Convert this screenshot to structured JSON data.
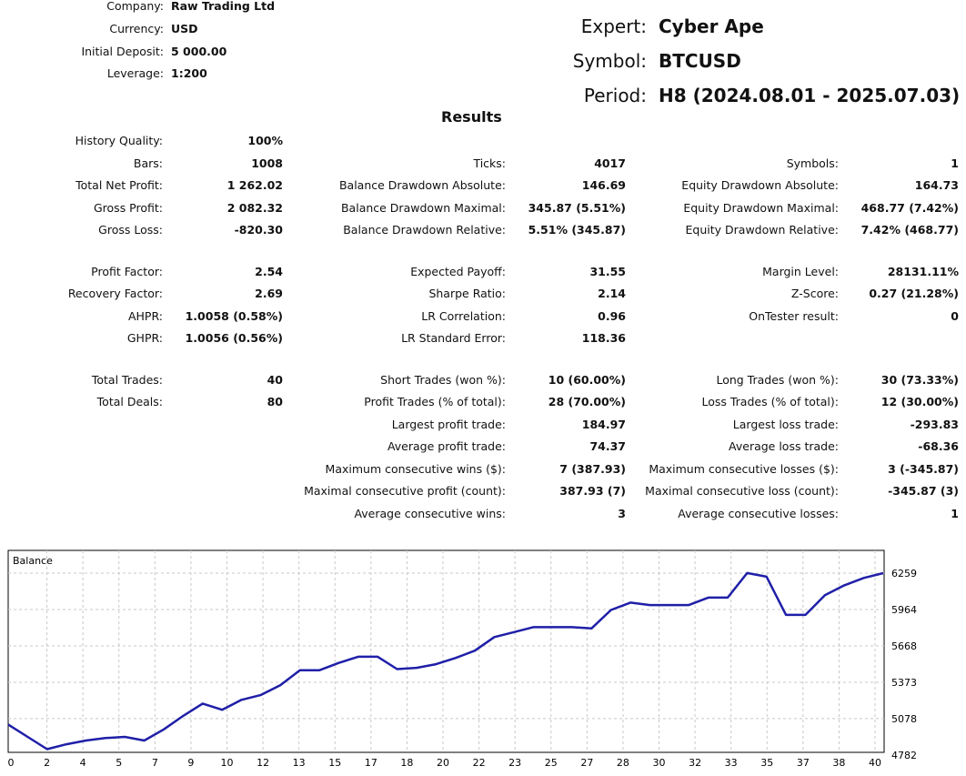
{
  "header": {
    "company_label": "Company:",
    "company": "Raw Trading Ltd",
    "currency_label": "Currency:",
    "currency": "USD",
    "deposit_label": "Initial Deposit:",
    "deposit": "5 000.00",
    "leverage_label": "Leverage:",
    "leverage": "1:200",
    "expert_label": "Expert:",
    "expert": "Cyber Ape",
    "symbol_label": "Symbol:",
    "symbol": "BTCUSD",
    "period_label": "Period:",
    "period": "H8 (2024.08.01 - 2025.07.03)"
  },
  "results_title": "Results",
  "col1": [
    {
      "label": "History Quality:",
      "value": "100%"
    },
    {
      "label": "Bars:",
      "value": "1008"
    },
    {
      "label": "Total Net Profit:",
      "value": "1 262.02"
    },
    {
      "label": "Gross Profit:",
      "value": "2 082.32"
    },
    {
      "label": "Gross Loss:",
      "value": "-820.30"
    },
    {
      "label": "Profit Factor:",
      "value": "2.54"
    },
    {
      "label": "Recovery Factor:",
      "value": "2.69"
    },
    {
      "label": "AHPR:",
      "value": "1.0058 (0.58%)"
    },
    {
      "label": "GHPR:",
      "value": "1.0056 (0.56%)"
    },
    {
      "label": "Total Trades:",
      "value": "40"
    },
    {
      "label": "Total Deals:",
      "value": "80"
    }
  ],
  "col2": [
    {
      "label": "Ticks:",
      "value": "4017"
    },
    {
      "label": "Balance Drawdown Absolute:",
      "value": "146.69"
    },
    {
      "label": "Balance Drawdown Maximal:",
      "value": "345.87 (5.51%)"
    },
    {
      "label": "Balance Drawdown Relative:",
      "value": "5.51% (345.87)"
    },
    {
      "label": "Expected Payoff:",
      "value": "31.55"
    },
    {
      "label": "Sharpe Ratio:",
      "value": "2.14"
    },
    {
      "label": "LR Correlation:",
      "value": "0.96"
    },
    {
      "label": "LR Standard Error:",
      "value": "118.36"
    },
    {
      "label": "Short Trades (won %):",
      "value": "10 (60.00%)"
    },
    {
      "label": "Profit Trades (% of total):",
      "value": "28 (70.00%)"
    },
    {
      "label": "Largest profit trade:",
      "value": "184.97"
    },
    {
      "label": "Average profit trade:",
      "value": "74.37"
    },
    {
      "label": "Maximum consecutive wins ($):",
      "value": "7 (387.93)"
    },
    {
      "label": "Maximal consecutive profit (count):",
      "value": "387.93 (7)"
    },
    {
      "label": "Average consecutive wins:",
      "value": "3"
    }
  ],
  "col3": [
    {
      "label": "Symbols:",
      "value": "1"
    },
    {
      "label": "Equity Drawdown Absolute:",
      "value": "164.73"
    },
    {
      "label": "Equity Drawdown Maximal:",
      "value": "468.77 (7.42%)"
    },
    {
      "label": "Equity Drawdown Relative:",
      "value": "7.42% (468.77)"
    },
    {
      "label": "Margin Level:",
      "value": "28131.11%"
    },
    {
      "label": "Z-Score:",
      "value": "0.27 (21.28%)"
    },
    {
      "label": "OnTester result:",
      "value": "0"
    },
    {
      "label": "Long Trades (won %):",
      "value": "30 (73.33%)"
    },
    {
      "label": "Loss Trades (% of total):",
      "value": "12 (30.00%)"
    },
    {
      "label": "Largest loss trade:",
      "value": "-293.83"
    },
    {
      "label": "Average loss trade:",
      "value": "-68.36"
    },
    {
      "label": "Maximum consecutive losses ($):",
      "value": "3 (-345.87)"
    },
    {
      "label": "Maximal consecutive loss (count):",
      "value": "-345.87 (3)"
    },
    {
      "label": "Average consecutive losses:",
      "value": "1"
    }
  ],
  "chart_data": {
    "type": "line",
    "title": "Balance",
    "line_color": "#1f1fa8",
    "ylim": [
      4782,
      6259
    ],
    "y_ticks": [
      "6259",
      "5964",
      "5668",
      "5373",
      "5078",
      "4782"
    ],
    "x_ticks": [
      "0",
      "2",
      "4",
      "5",
      "7",
      "9",
      "10",
      "12",
      "13",
      "15",
      "17",
      "18",
      "20",
      "22",
      "23",
      "25",
      "27",
      "28",
      "30",
      "32",
      "33",
      "35",
      "37",
      "38",
      "40"
    ],
    "grid": true,
    "series": [
      {
        "values": [
          5030,
          4930,
          4830,
          4870,
          4900,
          4920,
          4930,
          4900,
          4990,
          5100,
          5200,
          5150,
          5230,
          5270,
          5350,
          5470,
          5470,
          5530,
          5580,
          5580,
          5480,
          5490,
          5520,
          5570,
          5630,
          5740,
          5780,
          5820,
          5820,
          5820,
          5810,
          5960,
          6020,
          6000,
          6000,
          6000,
          6060,
          6060,
          6260,
          6230,
          5920,
          5920,
          6080,
          6160,
          6220,
          6259
        ]
      }
    ]
  }
}
